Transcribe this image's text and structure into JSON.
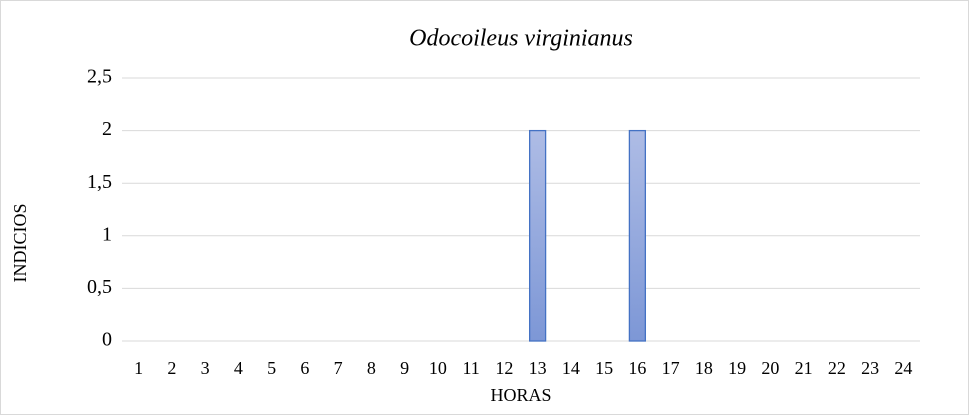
{
  "chart_data": {
    "type": "bar",
    "title": "Odocoileus virginianus",
    "x_label": "HORAS",
    "y_label": "INDICIOS",
    "categories": [
      "1",
      "2",
      "3",
      "4",
      "5",
      "6",
      "7",
      "8",
      "9",
      "10",
      "11",
      "12",
      "13",
      "14",
      "15",
      "16",
      "17",
      "18",
      "19",
      "20",
      "21",
      "22",
      "23",
      "24"
    ],
    "values": [
      0,
      0,
      0,
      0,
      0,
      0,
      0,
      0,
      0,
      0,
      0,
      0,
      2,
      0,
      0,
      2,
      0,
      0,
      0,
      0,
      0,
      0,
      0,
      0
    ],
    "color": "#4472c4",
    "ylim": [
      0,
      2.5
    ],
    "yticks": [
      0,
      {
        "value": 0.5,
        "label": "0,5"
      },
      1,
      {
        "value": 1.5,
        "label": "1,5"
      },
      2,
      {
        "value": 2.5,
        "label": "2,5"
      }
    ],
    "grid": true
  }
}
